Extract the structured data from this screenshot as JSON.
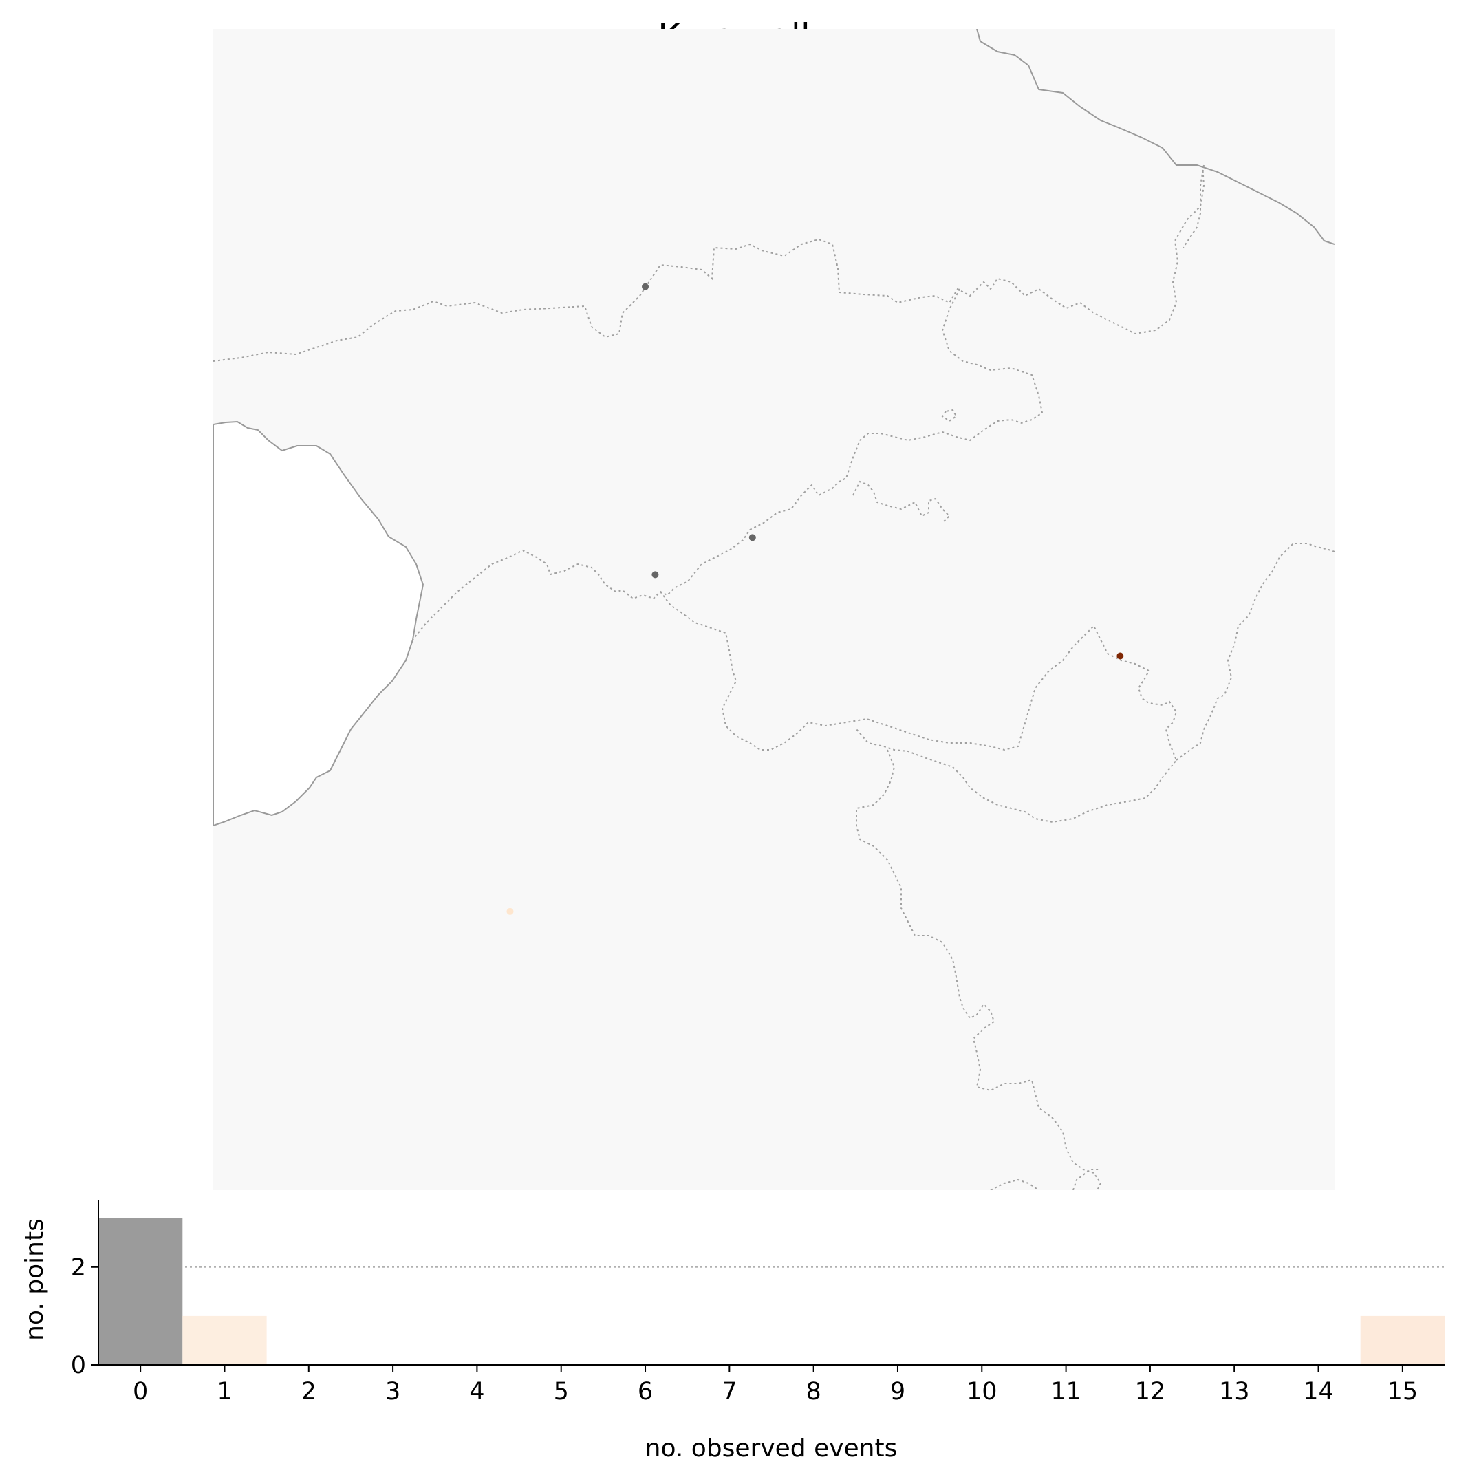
{
  "title": "Kura - all",
  "map": {
    "points": [
      {
        "lon": 43.62,
        "lat": 42.89,
        "events": 0,
        "color": "#666666"
      },
      {
        "lon": 44.27,
        "lat": 41.81,
        "events": 0,
        "color": "#666666"
      },
      {
        "lon": 43.68,
        "lat": 41.65,
        "events": 0,
        "color": "#666666"
      },
      {
        "lon": 46.5,
        "lat": 41.3,
        "events": 15,
        "color": "#7f2704"
      },
      {
        "lon": 42.8,
        "lat": 40.2,
        "events": 1,
        "color": "#fee6ce"
      }
    ],
    "background_color": "#f8f8f8"
  },
  "chart_data": {
    "type": "bar",
    "title": "",
    "xlabel": "no. observed events",
    "ylabel": "no. points",
    "categories": [
      "0",
      "1",
      "2",
      "3",
      "4",
      "5",
      "6",
      "7",
      "8",
      "9",
      "10",
      "11",
      "12",
      "13",
      "14",
      "15"
    ],
    "values": [
      3,
      1,
      0,
      0,
      0,
      0,
      0,
      0,
      0,
      0,
      0,
      0,
      0,
      0,
      0,
      1
    ],
    "bar_colors": [
      "#9b9b9b",
      "#fdeee0",
      null,
      null,
      null,
      null,
      null,
      null,
      null,
      null,
      null,
      null,
      null,
      null,
      null,
      "#fdeadb"
    ],
    "yticks": [
      0,
      2
    ],
    "ylim": [
      0,
      3.15
    ],
    "xlim": [
      -0.5,
      15.5
    ],
    "reference_line": 2,
    "grid": false
  }
}
